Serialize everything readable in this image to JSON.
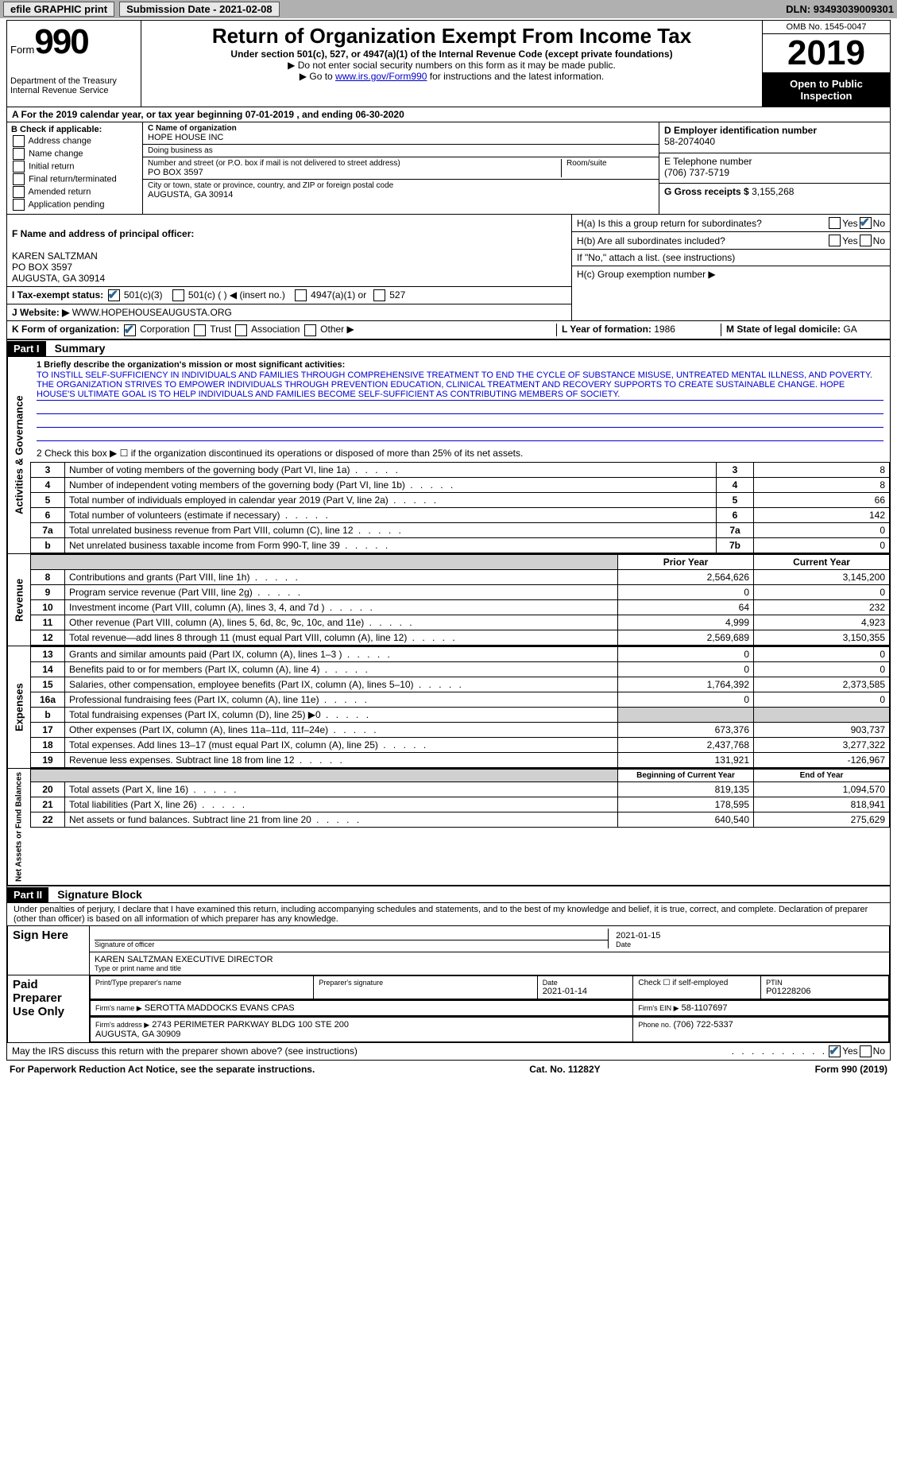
{
  "top_bar": {
    "efile": "efile GRAPHIC print",
    "sub_date_label": "Submission Date - 2021-02-08",
    "dln": "DLN: 93493039009301"
  },
  "header": {
    "form_word": "Form",
    "form_num": "990",
    "dept": "Department of the Treasury\nInternal Revenue Service",
    "title": "Return of Organization Exempt From Income Tax",
    "subtitle": "Under section 501(c), 527, or 4947(a)(1) of the Internal Revenue Code (except private foundations)",
    "note1": "▶ Do not enter social security numbers on this form as it may be made public.",
    "note2_pre": "▶ Go to ",
    "note2_link": "www.irs.gov/Form990",
    "note2_post": " for instructions and the latest information.",
    "omb": "OMB No. 1545-0047",
    "year": "2019",
    "open": "Open to Public Inspection"
  },
  "row_a": "A   For the 2019 calendar year, or tax year beginning 07-01-2019    , and ending 06-30-2020",
  "col_b": {
    "title": "B Check if applicable:",
    "items": [
      "Address change",
      "Name change",
      "Initial return",
      "Final return/terminated",
      "Amended return",
      "Application pending"
    ]
  },
  "col_c": {
    "c_label": "C Name of organization",
    "org": "HOPE HOUSE INC",
    "dba_label": "Doing business as",
    "dba": "",
    "addr_label": "Number and street (or P.O. box if mail is not delivered to street address)",
    "room_label": "Room/suite",
    "addr": "PO BOX 3597",
    "city_label": "City or town, state or province, country, and ZIP or foreign postal code",
    "city": "AUGUSTA, GA   30914"
  },
  "col_de": {
    "d_label": "D Employer identification number",
    "ein": "58-2074040",
    "e_label": "E Telephone number",
    "phone": "(706) 737-5719",
    "g_label": "G Gross receipts $",
    "gross": "3,155,268"
  },
  "section_f": {
    "f_label": "F Name and address of principal officer:",
    "officer": "KAREN SALTZMAN\nPO BOX 3597\nAUGUSTA, GA   30914",
    "i_label": "I    Tax-exempt status:",
    "i_opts": [
      "501(c)(3)",
      "501(c) (  ) ◀ (insert no.)",
      "4947(a)(1) or",
      "527"
    ],
    "j_label": "J    Website: ▶",
    "website": "WWW.HOPEHOUSEAUGUSTA.ORG",
    "ha_label": "H(a)  Is this a group return for subordinates?",
    "hb_label": "H(b)  Are all subordinates included?",
    "hb_note": "If \"No,\" attach a list. (see instructions)",
    "hc_label": "H(c)  Group exemption number ▶"
  },
  "row_k": {
    "k_label": "K Form of organization:",
    "opts": [
      "Corporation",
      "Trust",
      "Association",
      "Other ▶"
    ],
    "l_label": "L Year of formation: ",
    "l_val": "1986",
    "m_label": "M State of legal domicile: ",
    "m_val": "GA"
  },
  "part1": {
    "tag": "Part I",
    "title": "Summary",
    "q1_label": "1  Briefly describe the organization's mission or most significant activities:",
    "mission": "TO INSTILL SELF-SUFFICIENCY IN INDIVIDUALS AND FAMILIES THROUGH COMPREHENSIVE TREATMENT TO END THE CYCLE OF SUBSTANCE MISUSE, UNTREATED MENTAL ILLNESS, AND POVERTY. THE ORGANIZATION STRIVES TO EMPOWER INDIVIDUALS THROUGH PREVENTION EDUCATION, CLINICAL TREATMENT AND RECOVERY SUPPORTS TO CREATE SUSTAINABLE CHANGE. HOPE HOUSE'S ULTIMATE GOAL IS TO HELP INDIVIDUALS AND FAMILIES BECOME SELF-SUFFICIENT AS CONTRIBUTING MEMBERS OF SOCIETY.",
    "q2": "2    Check this box ▶ ☐  if the organization discontinued its operations or disposed of more than 25% of its net assets.",
    "side_labels": {
      "gov": "Activities & Governance",
      "rev": "Revenue",
      "exp": "Expenses",
      "net": "Net Assets or Fund Balances"
    },
    "gov_rows": [
      {
        "n": "3",
        "desc": "Number of voting members of the governing body (Part VI, line 1a)",
        "label": "3",
        "val": "8"
      },
      {
        "n": "4",
        "desc": "Number of independent voting members of the governing body (Part VI, line 1b)",
        "label": "4",
        "val": "8"
      },
      {
        "n": "5",
        "desc": "Total number of individuals employed in calendar year 2019 (Part V, line 2a)",
        "label": "5",
        "val": "66"
      },
      {
        "n": "6",
        "desc": "Total number of volunteers (estimate if necessary)",
        "label": "6",
        "val": "142"
      },
      {
        "n": "7a",
        "desc": "Total unrelated business revenue from Part VIII, column (C), line 12",
        "label": "7a",
        "val": "0"
      },
      {
        "n": "b",
        "desc": "Net unrelated business taxable income from Form 990-T, line 39",
        "label": "7b",
        "val": "0"
      }
    ],
    "col_headers": {
      "prior": "Prior Year",
      "current": "Current Year",
      "beg": "Beginning of Current Year",
      "end": "End of Year"
    },
    "rev_rows": [
      {
        "n": "8",
        "desc": "Contributions and grants (Part VIII, line 1h)",
        "prior": "2,564,626",
        "cur": "3,145,200"
      },
      {
        "n": "9",
        "desc": "Program service revenue (Part VIII, line 2g)",
        "prior": "0",
        "cur": "0"
      },
      {
        "n": "10",
        "desc": "Investment income (Part VIII, column (A), lines 3, 4, and 7d )",
        "prior": "64",
        "cur": "232"
      },
      {
        "n": "11",
        "desc": "Other revenue (Part VIII, column (A), lines 5, 6d, 8c, 9c, 10c, and 11e)",
        "prior": "4,999",
        "cur": "4,923"
      },
      {
        "n": "12",
        "desc": "Total revenue—add lines 8 through 11 (must equal Part VIII, column (A), line 12)",
        "prior": "2,569,689",
        "cur": "3,150,355"
      }
    ],
    "exp_rows": [
      {
        "n": "13",
        "desc": "Grants and similar amounts paid (Part IX, column (A), lines 1–3 )",
        "prior": "0",
        "cur": "0"
      },
      {
        "n": "14",
        "desc": "Benefits paid to or for members (Part IX, column (A), line 4)",
        "prior": "0",
        "cur": "0"
      },
      {
        "n": "15",
        "desc": "Salaries, other compensation, employee benefits (Part IX, column (A), lines 5–10)",
        "prior": "1,764,392",
        "cur": "2,373,585"
      },
      {
        "n": "16a",
        "desc": "Professional fundraising fees (Part IX, column (A), line 11e)",
        "prior": "0",
        "cur": "0"
      },
      {
        "n": "b",
        "desc": "Total fundraising expenses (Part IX, column (D), line 25) ▶0",
        "prior": "",
        "cur": "",
        "grey": true
      },
      {
        "n": "17",
        "desc": "Other expenses (Part IX, column (A), lines 11a–11d, 11f–24e)",
        "prior": "673,376",
        "cur": "903,737"
      },
      {
        "n": "18",
        "desc": "Total expenses. Add lines 13–17 (must equal Part IX, column (A), line 25)",
        "prior": "2,437,768",
        "cur": "3,277,322"
      },
      {
        "n": "19",
        "desc": "Revenue less expenses. Subtract line 18 from line 12",
        "prior": "131,921",
        "cur": "-126,967"
      }
    ],
    "net_rows": [
      {
        "n": "20",
        "desc": "Total assets (Part X, line 16)",
        "prior": "819,135",
        "cur": "1,094,570"
      },
      {
        "n": "21",
        "desc": "Total liabilities (Part X, line 26)",
        "prior": "178,595",
        "cur": "818,941"
      },
      {
        "n": "22",
        "desc": "Net assets or fund balances. Subtract line 21 from line 20",
        "prior": "640,540",
        "cur": "275,629"
      }
    ]
  },
  "part2": {
    "tag": "Part II",
    "title": "Signature Block",
    "decl": "Under penalties of perjury, I declare that I have examined this return, including accompanying schedules and statements, and to the best of my knowledge and belief, it is true, correct, and complete. Declaration of preparer (other than officer) is based on all information of which preparer has any knowledge.",
    "sign_here": "Sign Here",
    "sig_officer": "Signature of officer",
    "sig_date": "2021-01-15",
    "sig_date_label": "Date",
    "name_title": "KAREN SALTZMAN  EXECUTIVE DIRECTOR",
    "name_title_label": "Type or print name and title",
    "paid": "Paid Preparer Use Only",
    "prep_name_label": "Print/Type preparer's name",
    "prep_sig_label": "Preparer's signature",
    "prep_date_label": "Date",
    "prep_date": "2021-01-14",
    "self_emp_label": "Check ☐ if self-employed",
    "ptin_label": "PTIN",
    "ptin": "P01228206",
    "firm_name_label": "Firm's name      ▶",
    "firm_name": "SEROTTA MADDOCKS EVANS CPAS",
    "firm_ein_label": "Firm's EIN ▶",
    "firm_ein": "58-1107697",
    "firm_addr_label": "Firm's address ▶",
    "firm_addr": "2743 PERIMETER PARKWAY BLDG 100 STE 200\nAUGUSTA, GA  30909",
    "firm_phone_label": "Phone no.",
    "firm_phone": "(706) 722-5337",
    "discuss": "May the IRS discuss this return with the preparer shown above? (see instructions)"
  },
  "footer": {
    "left": "For Paperwork Reduction Act Notice, see the separate instructions.",
    "mid": "Cat. No. 11282Y",
    "right": "Form 990 (2019)"
  }
}
